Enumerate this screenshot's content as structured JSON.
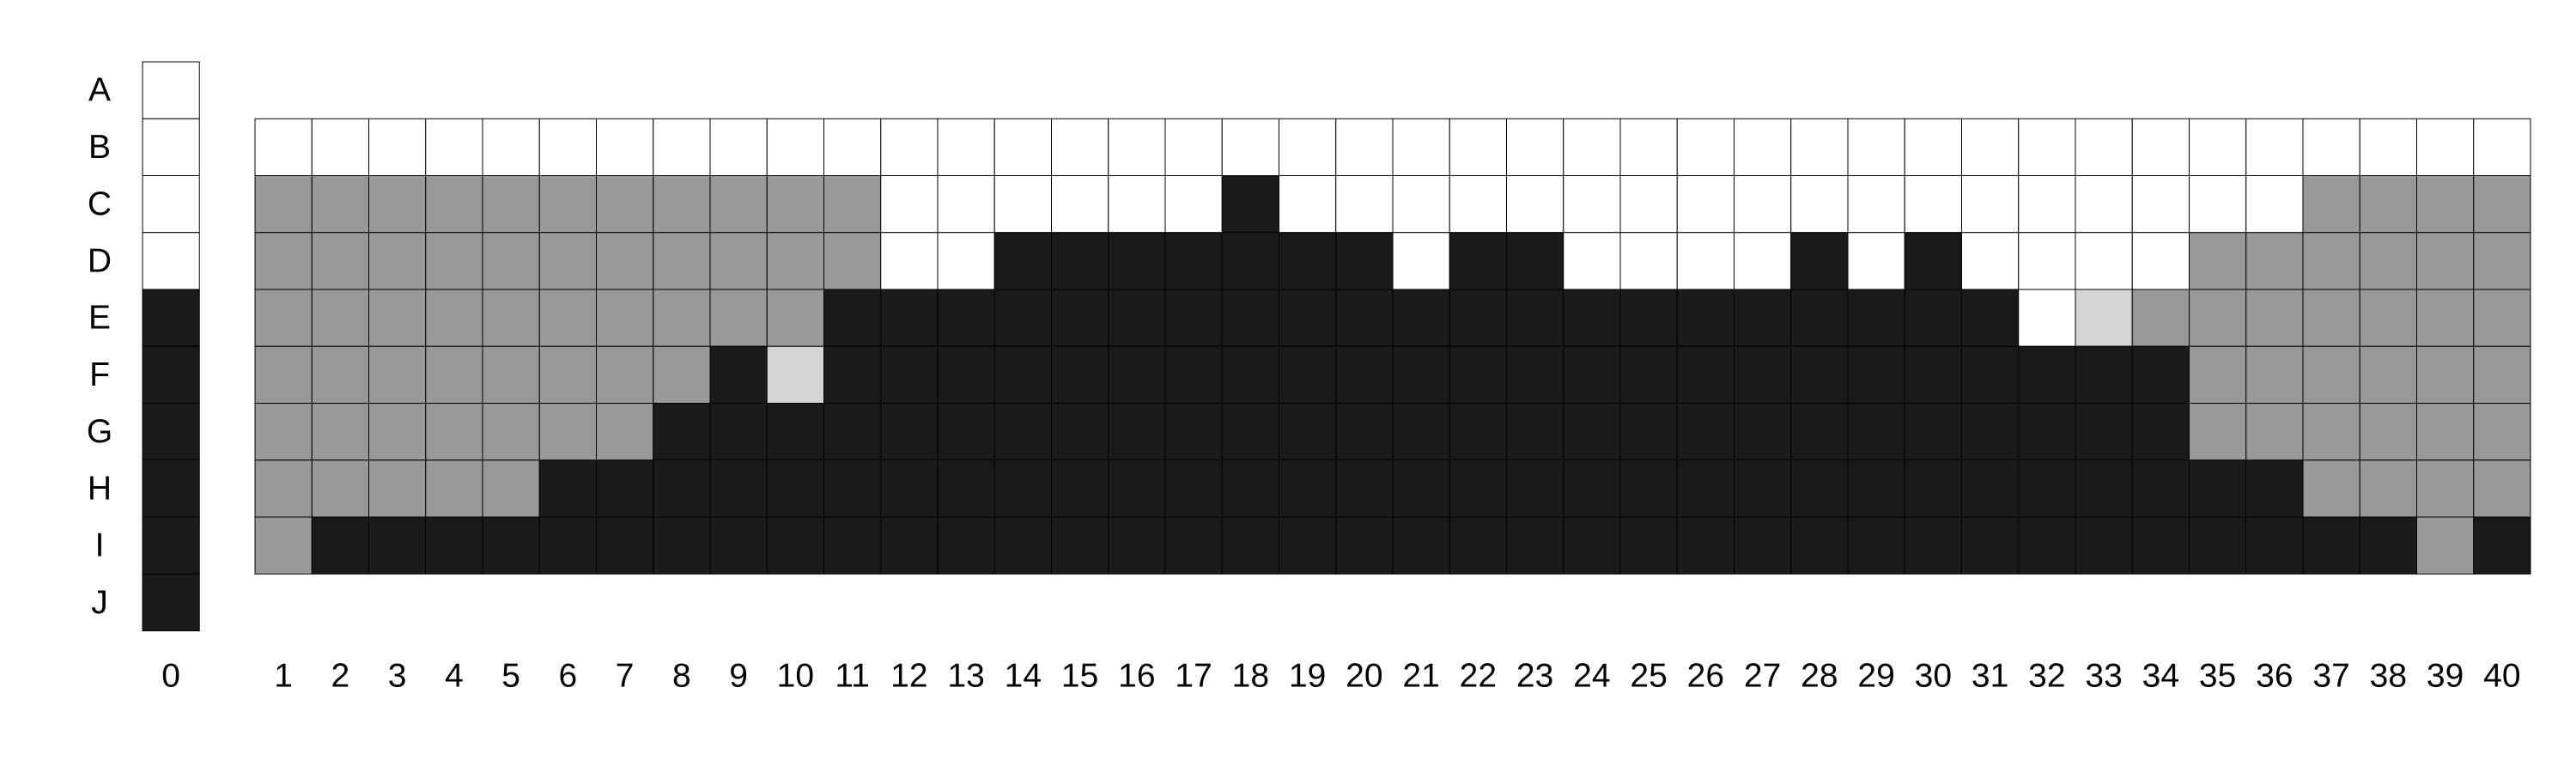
{
  "chart_data": {
    "type": "grid",
    "row_labels": [
      "A",
      "B",
      "C",
      "D",
      "E",
      "F",
      "G",
      "H",
      "I",
      "J"
    ],
    "column0_label": "0",
    "column_labels": [
      "1",
      "2",
      "3",
      "4",
      "5",
      "6",
      "7",
      "8",
      "9",
      "10",
      "11",
      "12",
      "13",
      "14",
      "15",
      "16",
      "17",
      "18",
      "19",
      "20",
      "21",
      "22",
      "23",
      "24",
      "25",
      "26",
      "27",
      "28",
      "29",
      "30",
      "31",
      "32",
      "33",
      "34",
      "35",
      "36",
      "37",
      "38",
      "39",
      "40"
    ],
    "legend_codes": {
      "W": "#ffffff",
      "L": "#d4d4d4",
      "G": "#999999",
      "K": "#1a1a1a"
    },
    "column0_cells": [
      "W",
      "W",
      "W",
      "W",
      "K",
      "K",
      "K",
      "K",
      "K",
      "K"
    ],
    "grid_row_labels": [
      "B",
      "C",
      "D",
      "E",
      "F",
      "G",
      "H",
      "I"
    ],
    "grid_rows": [
      "WWWWWWWWWWWWWWWWWWWWWWWWWWWWWWWWWWWWWWWW",
      "GGGGGGGGGGGWWWWWWKWWWWWWWWWWWWWWWWWWGGGG",
      "GGGGGGGGGGGWWKKKKKKKWKKWWWWKWKWWWWGGGGGG",
      "GGGGGGGGGGKKKKKKKKKKKKKKKKKKKKKWLGGGGGGG",
      "GGGGGGGGKLKKKKKKKKKKKKKKKKKKKKKKKKGGGGGG",
      "GGGGGGGKKKKKKKKKKKKKKKKKKKKKKKKKKKGGGGGG",
      "GGGGGKKKKKKKKKKKKKKKKKKKKKKKKKKKKKKKGGGG",
      "GKKKKKKKKKKKKKKKKKKKKKKKKKKKKKKKKKKKKKGK"
    ]
  }
}
